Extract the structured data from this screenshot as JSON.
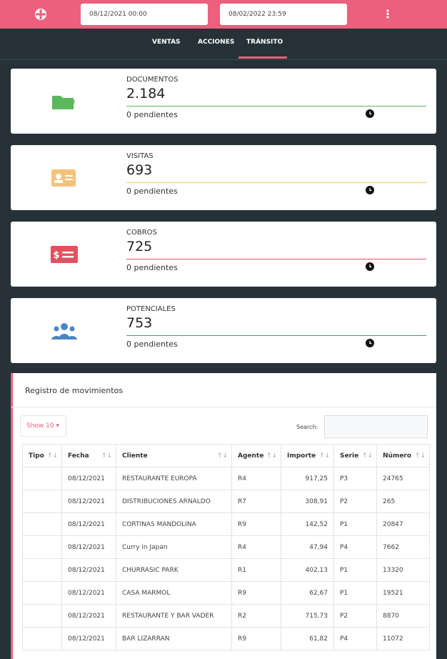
{
  "header": {
    "date_from": "08/12/2021 00:00",
    "date_to": "08/02/2022 23:59"
  },
  "tabs": [
    "VENTAS",
    "ACCIONES",
    "TRÁNSITO"
  ],
  "cards": [
    {
      "label": "DOCUMENTOS",
      "value": "2.184",
      "pending": "0 pendientes",
      "color": "#5cb85c",
      "icon": "folder"
    },
    {
      "label": "VISITAS",
      "value": "693",
      "pending": "0 pendientes",
      "color": "#f5c27a",
      "icon": "card"
    },
    {
      "label": "COBROS",
      "value": "725",
      "pending": "0 pendientes",
      "color": "#e05260",
      "icon": "money"
    },
    {
      "label": "POTENCIALES",
      "value": "753",
      "pending": "0 pendientes",
      "color": "#4a86c5",
      "icon": "users"
    }
  ],
  "table": {
    "title": "Registro de movimientos",
    "show": "Show 10",
    "search_label": "Search:",
    "columns": [
      "Tipo",
      "Fecha",
      "Cliente",
      "Agente",
      "Importe",
      "Serie",
      "Número"
    ],
    "rows": [
      [
        "08/12/2021",
        "RESTAURANTE EUROPA",
        "R4",
        "917,25",
        "P3",
        "24765"
      ],
      [
        "08/12/2021",
        "DISTRIBUCIONES ARNALDO",
        "R7",
        "308,91",
        "P2",
        "265"
      ],
      [
        "08/12/2021",
        "CORTINAS MANDOLINA",
        "R9",
        "142,52",
        "P1",
        "20847"
      ],
      [
        "08/12/2021",
        "Curry in Japan",
        "R4",
        "47,94",
        "P4",
        "7662"
      ],
      [
        "08/12/2021",
        "CHURRASIC PARK",
        "R1",
        "402,13",
        "P1",
        "13320"
      ],
      [
        "08/12/2021",
        "CASA MARMOL",
        "R9",
        "62,67",
        "P1",
        "19521"
      ],
      [
        "08/12/2021",
        "RESTAURANTE Y BAR VADER",
        "R2",
        "715,73",
        "P2",
        "8870"
      ],
      [
        "08/12/2021",
        "BAR LIZARRAN",
        "R9",
        "61,82",
        "P4",
        "11072"
      ]
    ]
  }
}
